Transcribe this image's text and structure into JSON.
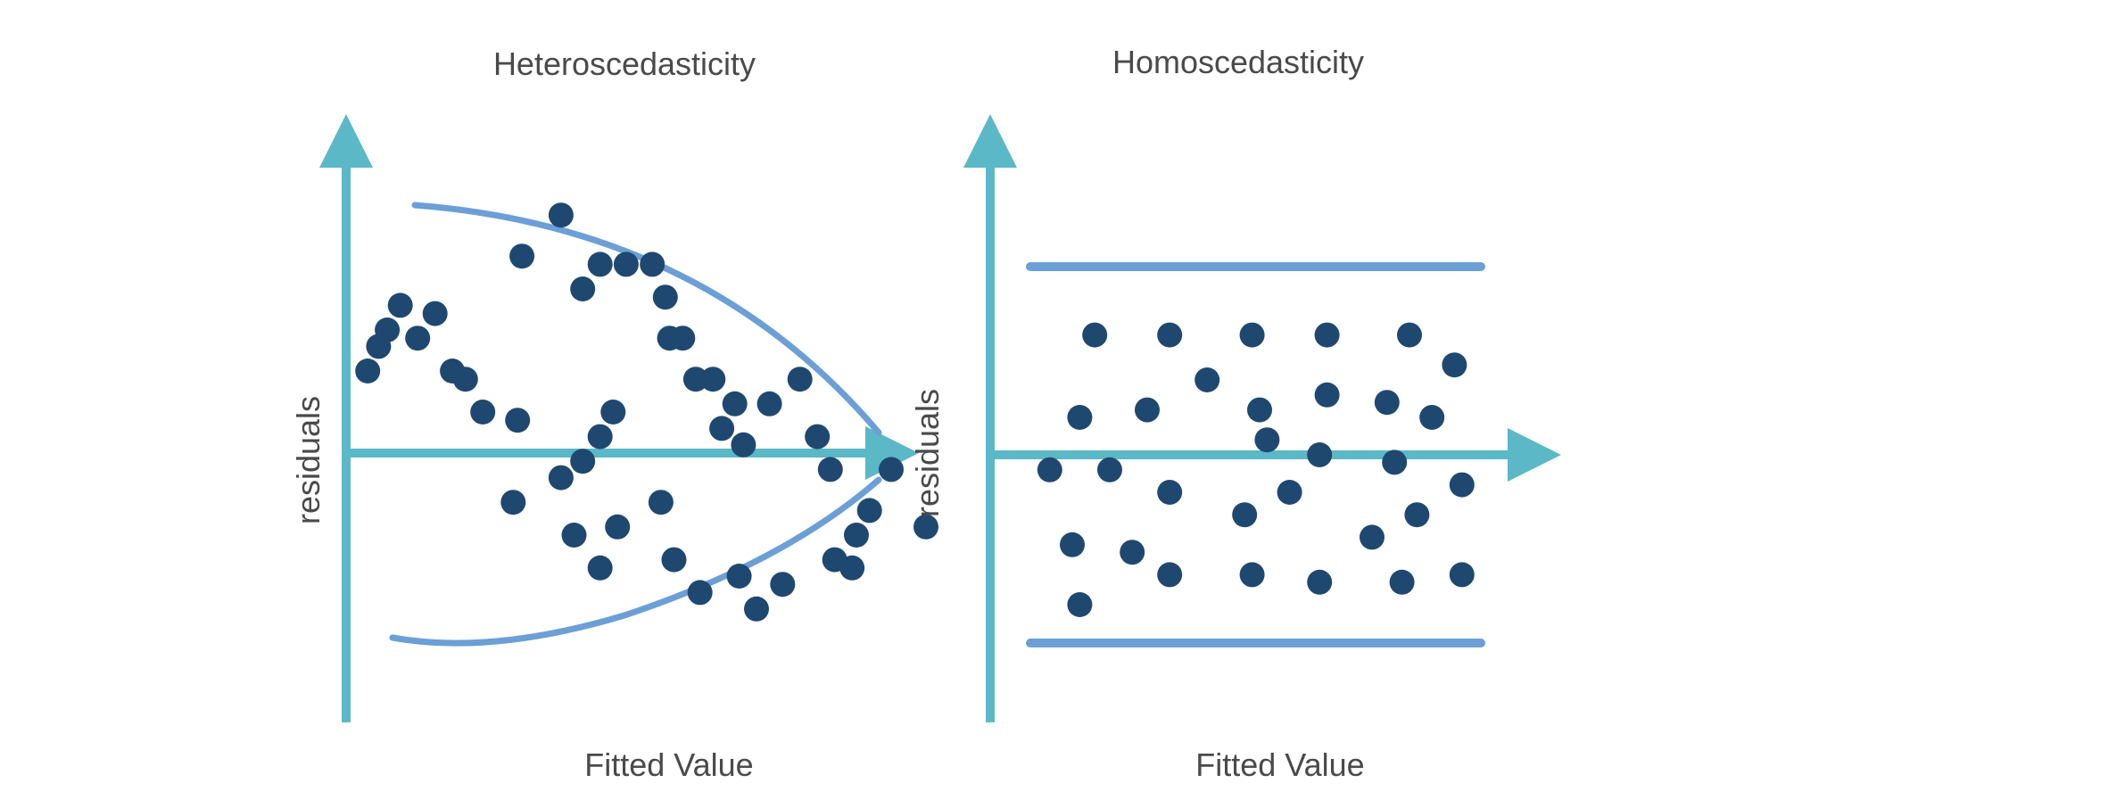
{
  "colors": {
    "axis": "#5bb8c7",
    "envelope": "#6b9fd6",
    "point": "#1f4870",
    "text": "#4a4a4a"
  },
  "panels": [
    {
      "title": "Heteroscedasticity",
      "xlabel": "Fitted Value",
      "ylabel": "residuals",
      "envelope": "funnel",
      "points": [
        [
          25,
          1.0
        ],
        [
          50,
          1.3
        ],
        [
          70,
          1.5
        ],
        [
          100,
          1.8
        ],
        [
          140,
          1.4
        ],
        [
          180,
          1.7
        ],
        [
          220,
          1.0
        ],
        [
          250,
          0.9
        ],
        [
          290,
          0.5
        ],
        [
          370,
          0.4
        ],
        [
          470,
          -0.3
        ],
        [
          520,
          -0.1
        ],
        [
          560,
          0.2
        ],
        [
          590,
          0.5
        ],
        [
          380,
          2.4
        ],
        [
          470,
          2.9
        ],
        [
          520,
          2.0
        ],
        [
          560,
          2.3
        ],
        [
          620,
          2.3
        ],
        [
          680,
          2.3
        ],
        [
          710,
          1.9
        ],
        [
          750,
          1.4
        ],
        [
          720,
          1.4
        ],
        [
          780,
          0.9
        ],
        [
          820,
          0.9
        ],
        [
          870,
          0.6
        ],
        [
          890,
          0.1
        ],
        [
          840,
          0.3
        ],
        [
          950,
          0.6
        ],
        [
          1020,
          0.9
        ],
        [
          1060,
          0.2
        ],
        [
          1090,
          -0.2
        ],
        [
          1180,
          -0.7
        ],
        [
          1230,
          -0.2
        ],
        [
          360,
          -0.6
        ],
        [
          500,
          -1.0
        ],
        [
          600,
          -0.9
        ],
        [
          560,
          -1.4
        ],
        [
          700,
          -0.6
        ],
        [
          730,
          -1.3
        ],
        [
          790,
          -1.7
        ],
        [
          880,
          -1.5
        ],
        [
          920,
          -1.9
        ],
        [
          980,
          -1.6
        ],
        [
          1100,
          -1.3
        ],
        [
          1150,
          -1.0
        ],
        [
          1140,
          -1.4
        ],
        [
          1310,
          -0.9
        ]
      ]
    },
    {
      "title": "Homoscedasticity",
      "xlabel": "Fitted Value",
      "ylabel": "residuals",
      "envelope": "band",
      "points": [
        [
          0.8,
          1.6
        ],
        [
          1.8,
          1.6
        ],
        [
          2.9,
          1.6
        ],
        [
          3.9,
          1.6
        ],
        [
          5.0,
          1.6
        ],
        [
          5.6,
          1.2
        ],
        [
          0.6,
          0.5
        ],
        [
          1.5,
          0.6
        ],
        [
          2.3,
          1.0
        ],
        [
          3.0,
          0.6
        ],
        [
          3.9,
          0.8
        ],
        [
          4.7,
          0.7
        ],
        [
          5.3,
          0.5
        ],
        [
          0.2,
          -0.2
        ],
        [
          1.0,
          -0.2
        ],
        [
          3.1,
          0.2
        ],
        [
          3.8,
          0.0
        ],
        [
          4.8,
          -0.1
        ],
        [
          1.8,
          -0.5
        ],
        [
          2.8,
          -0.8
        ],
        [
          3.4,
          -0.5
        ],
        [
          4.5,
          -1.1
        ],
        [
          5.1,
          -0.8
        ],
        [
          5.7,
          -0.4
        ],
        [
          0.5,
          -1.2
        ],
        [
          1.3,
          -1.3
        ],
        [
          1.8,
          -1.6
        ],
        [
          2.9,
          -1.6
        ],
        [
          3.8,
          -1.7
        ],
        [
          4.9,
          -1.7
        ],
        [
          5.7,
          -1.6
        ],
        [
          0.6,
          -2.0
        ]
      ]
    }
  ]
}
